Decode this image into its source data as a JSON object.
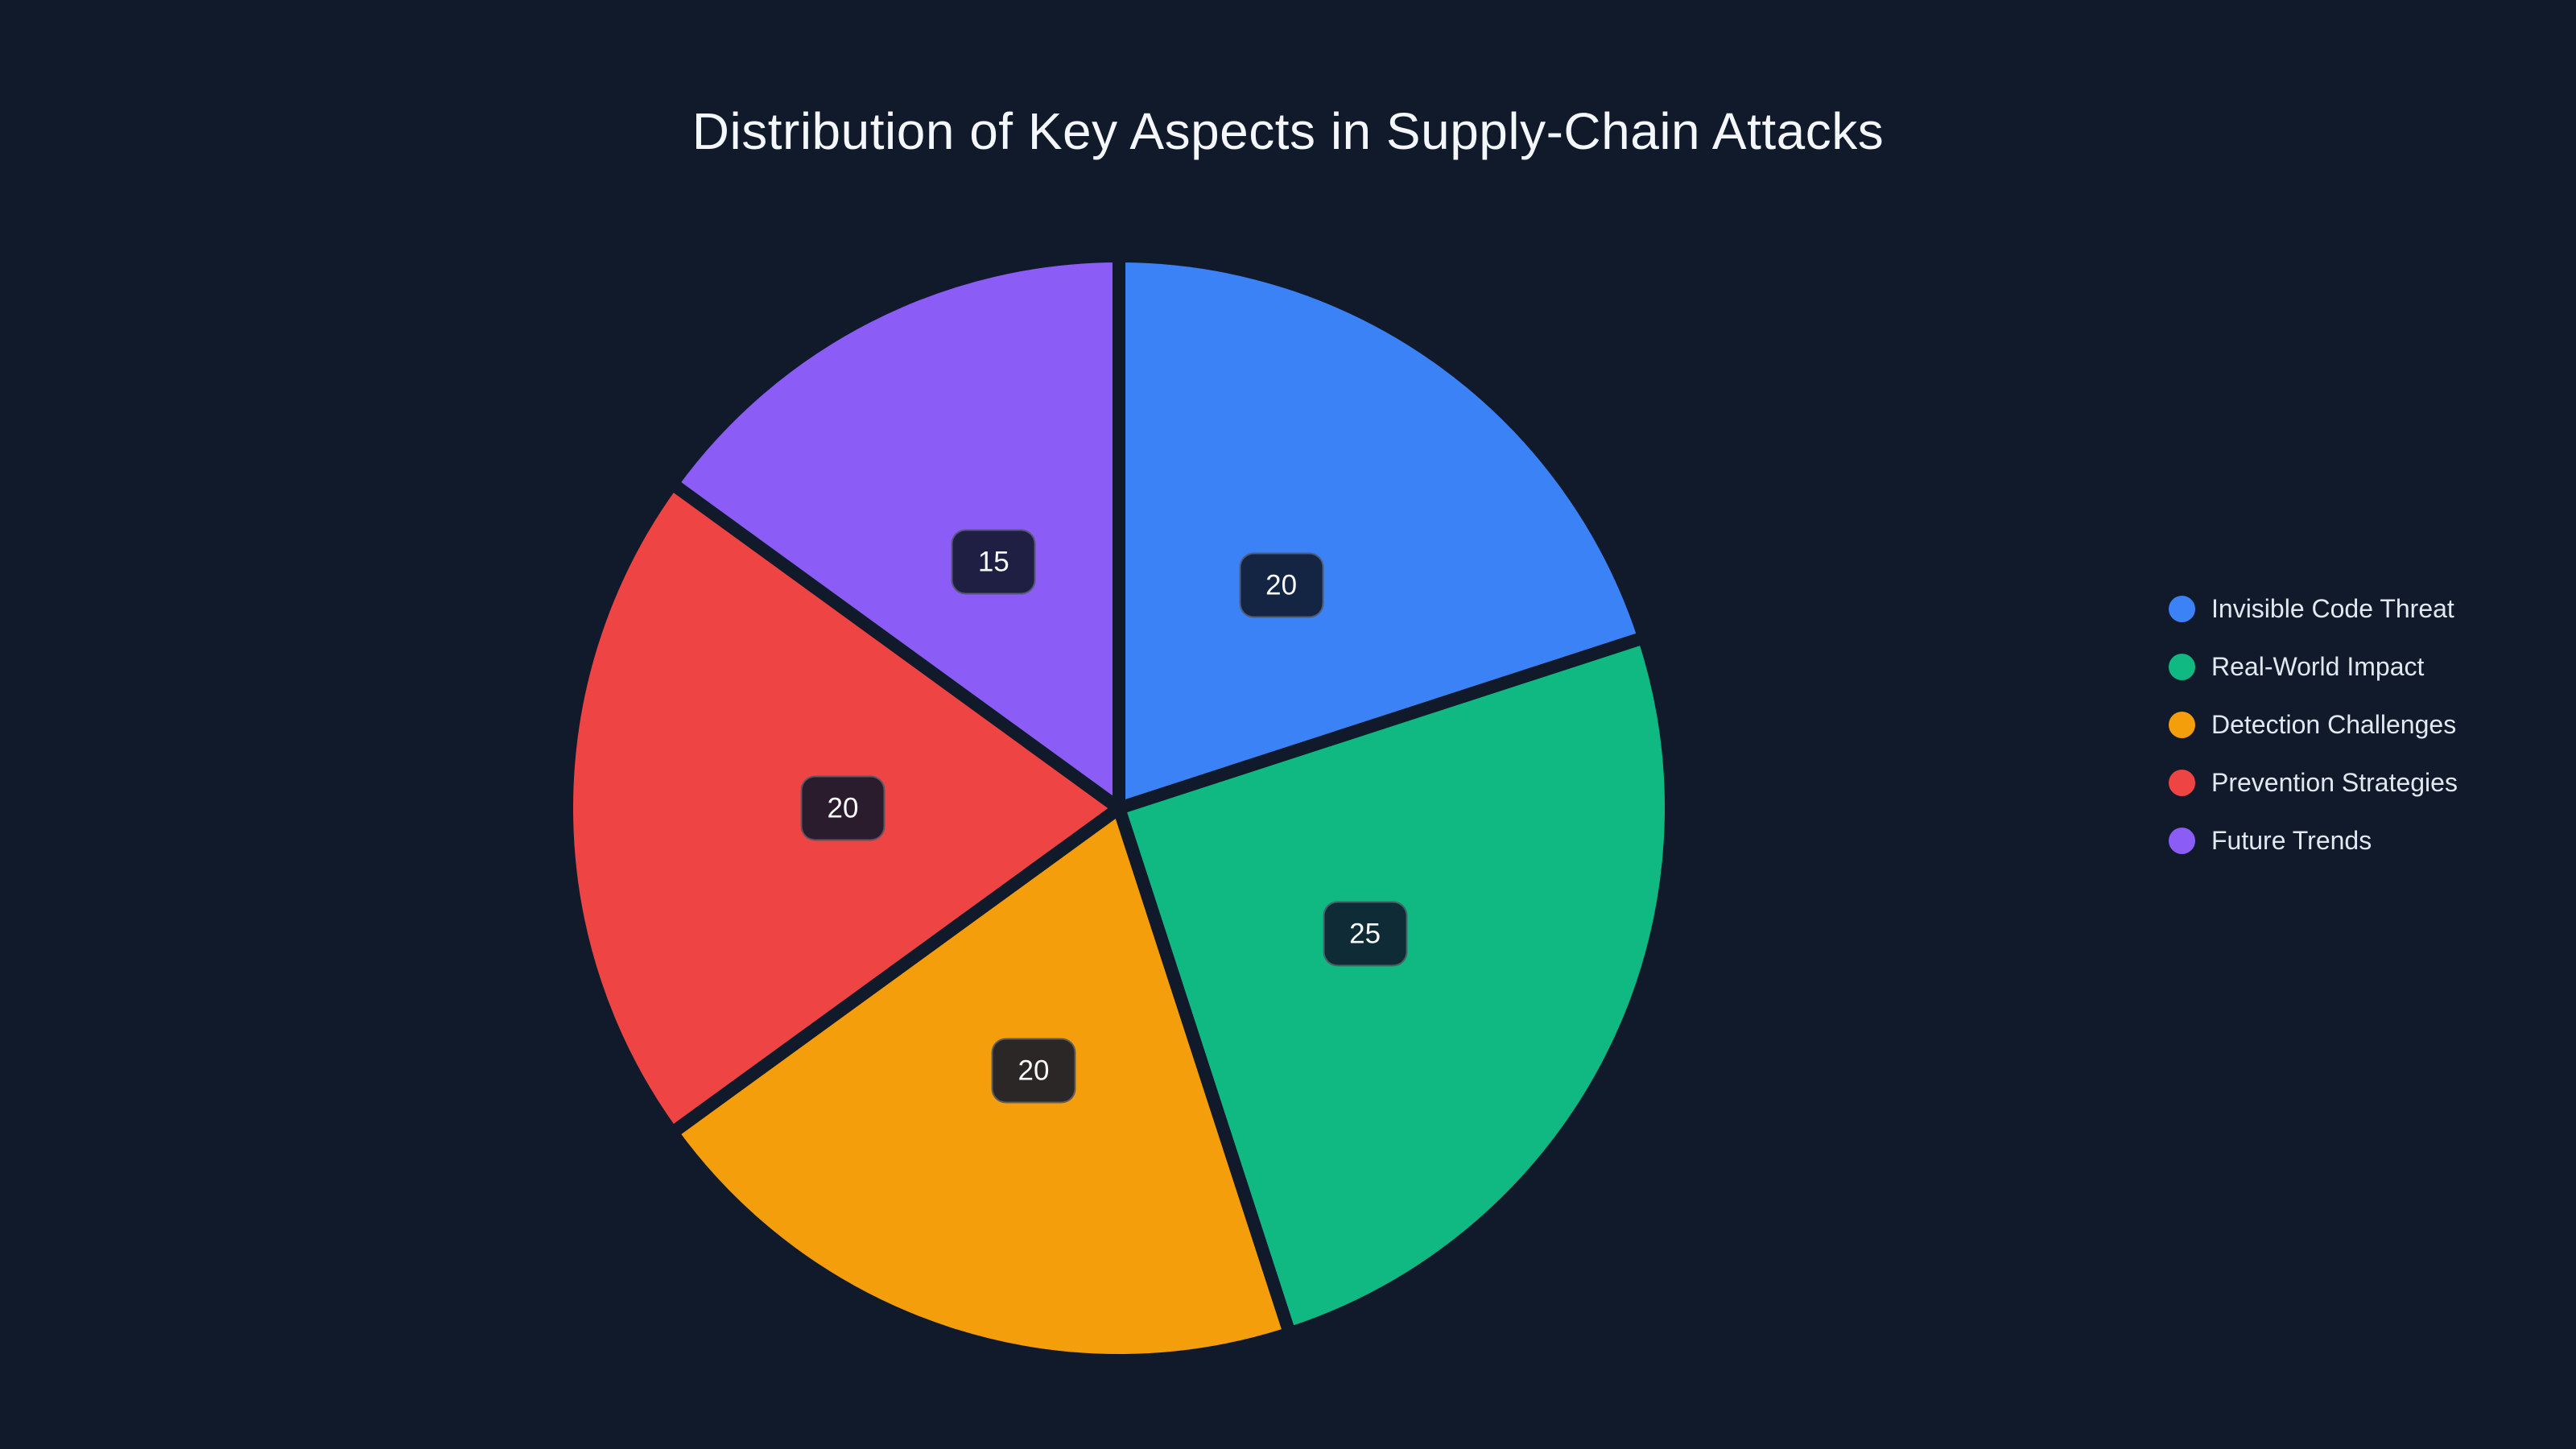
{
  "page": {
    "background": "#111A2B",
    "title_color": "#F4F7FB",
    "legend_text_color": "#E2E8F0",
    "badge_fill": "rgba(15,23,42,0.88)",
    "badge_border": "rgba(255,255,255,0.25)",
    "badge_text_color": "#F8FAFC",
    "slice_border_color": "#111A2B"
  },
  "chart_data": {
    "type": "pie",
    "title": "Distribution of Key Aspects in Supply-Chain Attacks",
    "series": [
      {
        "label": "Invisible Code Threat",
        "value": 20,
        "color": "#3B82F6"
      },
      {
        "label": "Real-World Impact",
        "value": 25,
        "color": "#10B981"
      },
      {
        "label": "Detection Challenges",
        "value": 20,
        "color": "#F59E0B"
      },
      {
        "label": "Prevention Strategies",
        "value": 20,
        "color": "#EF4444"
      },
      {
        "label": "Future Trends",
        "value": 15,
        "color": "#8B5CF6"
      }
    ],
    "total": 100,
    "start_angle_deg": -90,
    "direction": "clockwise",
    "value_labels_shown": true,
    "label_radius_fraction": 0.5,
    "legend_position": "right",
    "legend_marker": "circle"
  }
}
